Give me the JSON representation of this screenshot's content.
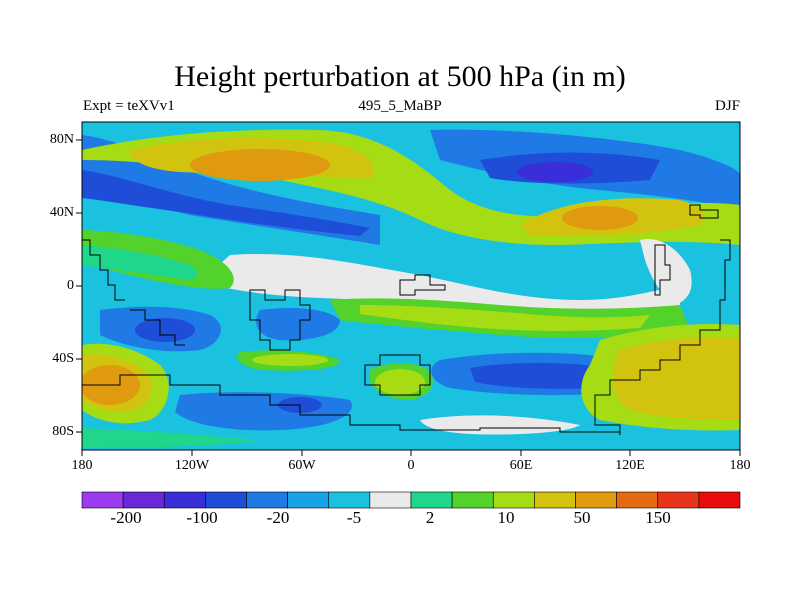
{
  "title": "Height perturbation at 500 hPa (in m)",
  "subtitle_left": "Expt = teXVv1",
  "subtitle_center": "495_5_MaBP",
  "subtitle_right": "DJF",
  "lat_labels": [
    "80N",
    "40N",
    "0",
    "40S",
    "80S"
  ],
  "lon_labels": [
    "180",
    "120W",
    "60W",
    "0",
    "60E",
    "120E",
    "180"
  ],
  "colorbar_colors": [
    "#9b3cf0",
    "#6a28d8",
    "#3a2ed8",
    "#1e4ed8",
    "#1f7ae6",
    "#18a2e6",
    "#1ac2e0",
    "#eaeaea",
    "#1fd68a",
    "#52d22a",
    "#a6dc14",
    "#d2c40e",
    "#e09a10",
    "#e46a10",
    "#e8341a",
    "#e80c0c"
  ],
  "colorbar_labels": [
    "-200",
    "-100",
    "-20",
    "-5",
    "2",
    "10",
    "50",
    "150"
  ],
  "field_colors": {
    "background": "#18a2e6",
    "zero": "#eaeaea",
    "pos1": "#1fd68a",
    "pos2": "#52d22a",
    "pos3": "#a6dc14",
    "pos4": "#d2c40e",
    "pos5": "#e09a10",
    "neg1": "#1ac2e0",
    "neg2": "#1f7ae6",
    "neg3": "#1e4ed8",
    "neg4": "#3a2ed8"
  }
}
